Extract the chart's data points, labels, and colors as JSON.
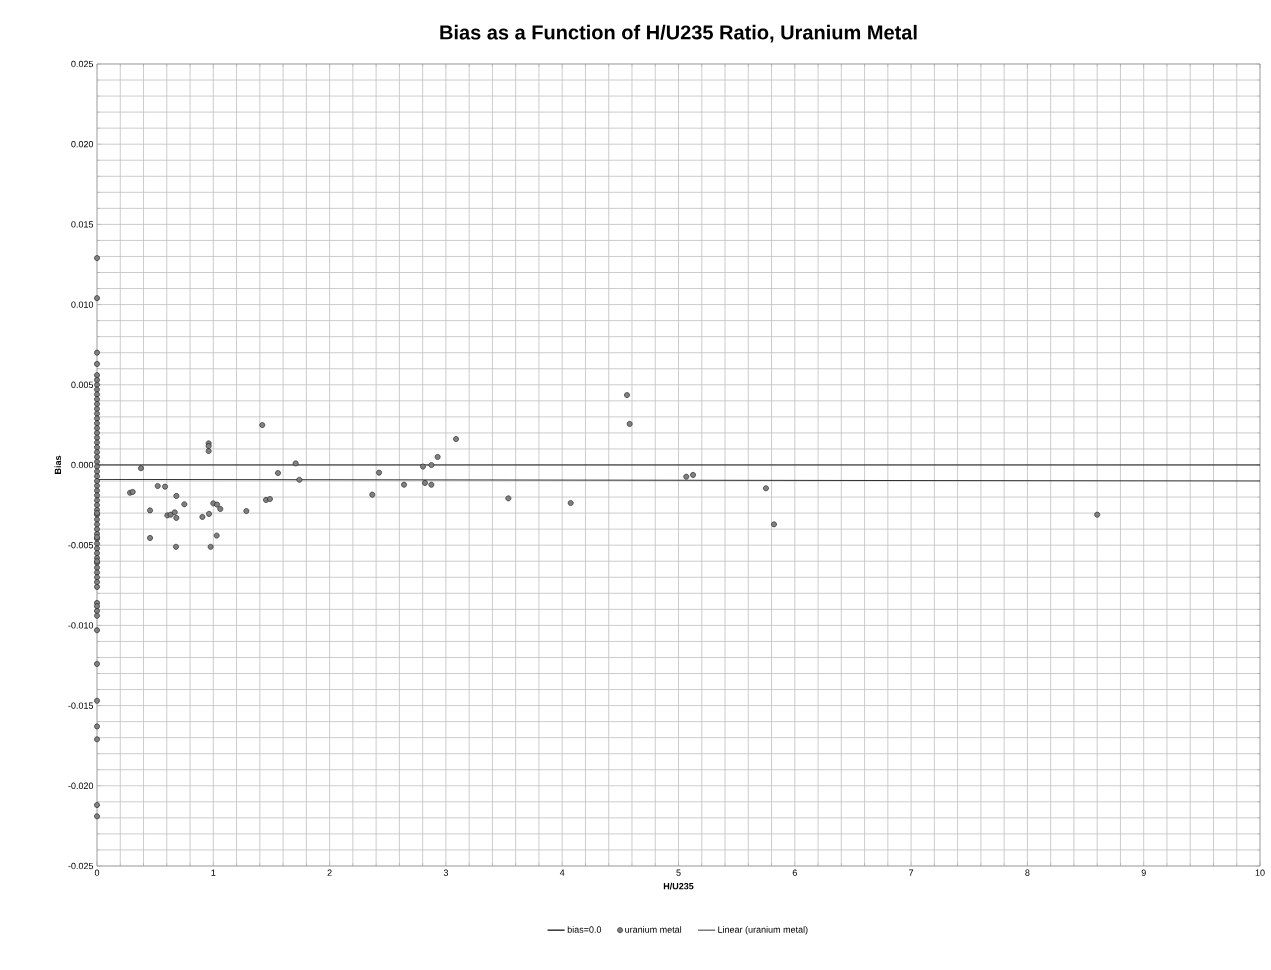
{
  "chart_data": {
    "type": "scatter",
    "title": "Bias as a Function of H/U235 Ratio, Uranium Metal",
    "xlabel": "H/U235",
    "ylabel": "Bias",
    "xlim": [
      0,
      10
    ],
    "xticks": [
      0,
      1,
      2,
      3,
      4,
      5,
      6,
      7,
      8,
      9,
      10
    ],
    "ylim": [
      -0.025,
      0.025
    ],
    "yticks": [
      {
        "value": -0.025,
        "label": "-0.025"
      },
      {
        "value": -0.02,
        "label": "-0.020"
      },
      {
        "value": -0.015,
        "label": "-0.015"
      },
      {
        "value": -0.01,
        "label": "-0.010"
      },
      {
        "value": -0.005,
        "label": "-0.005"
      },
      {
        "value": 0,
        "label": "0.000"
      },
      {
        "value": 0.005,
        "label": "0.005"
      },
      {
        "value": 0.01,
        "label": "0.010"
      },
      {
        "value": 0.015,
        "label": "0.015"
      },
      {
        "value": 0.02,
        "label": "0.020"
      },
      {
        "value": 0.025,
        "label": "0.025"
      }
    ],
    "grid": true,
    "legend": "bottom",
    "series": [
      {
        "name": "bias=0.0",
        "type": "line",
        "color": "#000000",
        "marker": "none",
        "x": [
          0,
          10
        ],
        "values": [
          0,
          0
        ]
      },
      {
        "name": "uranium metal",
        "color": "#808080",
        "marker": "circle",
        "x": [
          0,
          0,
          0,
          0,
          0,
          0,
          0,
          0,
          0,
          0,
          0,
          0,
          0,
          0,
          0,
          0,
          0,
          0,
          0,
          0,
          0,
          0,
          0,
          0,
          0,
          0,
          0,
          0,
          0,
          0,
          0,
          0,
          0,
          0,
          0,
          0,
          0,
          0,
          0,
          0,
          0,
          0,
          0,
          0,
          0,
          0,
          0,
          0,
          0,
          0,
          0,
          0,
          0,
          0,
          0,
          0,
          0,
          0,
          0,
          0,
          0,
          0,
          0,
          0.284,
          0.307,
          0.378,
          0.456,
          0.456,
          0.522,
          0.585,
          0.605,
          0.633,
          0.668,
          0.682,
          0.682,
          0.679,
          0.751,
          0.906,
          0.963,
          0.96,
          0.96,
          0.96,
          0.977,
          1.0,
          1.032,
          1.029,
          1.06,
          1.284,
          1.421,
          1.453,
          1.487,
          1.556,
          1.708,
          1.74,
          2.367,
          2.425,
          2.64,
          2.803,
          2.82,
          2.875,
          2.875,
          2.929,
          3.087,
          3.537,
          4.073,
          4.557,
          4.58,
          5.067,
          5.125,
          5.752,
          5.821,
          8.6
        ],
        "values": [
          0.0129,
          0.0104,
          0.007,
          0.0063,
          0.0056,
          0.0053,
          0.005,
          0.0047,
          0.0044,
          0.0041,
          0.0038,
          0.0035,
          0.0032,
          0.0029,
          0.0026,
          0.0023,
          0.002,
          0.0017,
          0.0014,
          0.0011,
          0.0008,
          0.0005,
          0.0002,
          -0.0001,
          -0.0004,
          -0.0007,
          -0.001,
          -0.0013,
          -0.0016,
          -0.0019,
          -0.0022,
          -0.0025,
          -0.0028,
          -0.0031,
          -0.0034,
          -0.0037,
          -0.004,
          -0.0043,
          -0.0046,
          -0.0049,
          -0.0052,
          -0.0055,
          -0.0058,
          -0.0061,
          -0.0064,
          -0.0067,
          -0.007,
          -0.0073,
          -0.0076,
          -0.0086,
          -0.0088,
          -0.0091,
          -0.0094,
          -0.0103,
          -0.0124,
          -0.0147,
          -0.0163,
          -0.0171,
          -0.0212,
          -0.0219,
          -0.006,
          -0.0045,
          -0.003,
          -0.00173,
          -0.00168,
          -0.0002,
          -0.00283,
          -0.00455,
          -0.00131,
          -0.00135,
          -0.00314,
          -0.0031,
          -0.00295,
          -0.0033,
          -0.00193,
          -0.0051,
          -0.00245,
          -0.00324,
          -0.00305,
          0.00135,
          0.00118,
          0.00087,
          -0.0051,
          -0.00239,
          -0.00247,
          -0.0044,
          -0.00274,
          -0.00287,
          0.00249,
          -0.00218,
          -0.00212,
          -0.0005,
          0.0001,
          -0.00092,
          -0.00185,
          -0.00048,
          -0.00123,
          -0.0001,
          -0.00112,
          0.0,
          -0.00123,
          0.0005,
          0.00162,
          -0.00208,
          -0.00237,
          0.00436,
          0.00256,
          -0.00073,
          -0.00062,
          -0.00145,
          -0.0037,
          -0.0031
        ]
      },
      {
        "name": "Linear (uranium metal)",
        "type": "line",
        "color": "#000000",
        "marker": "none",
        "x": [
          0,
          10
        ],
        "values": [
          -0.0009,
          -0.001
        ]
      }
    ]
  }
}
